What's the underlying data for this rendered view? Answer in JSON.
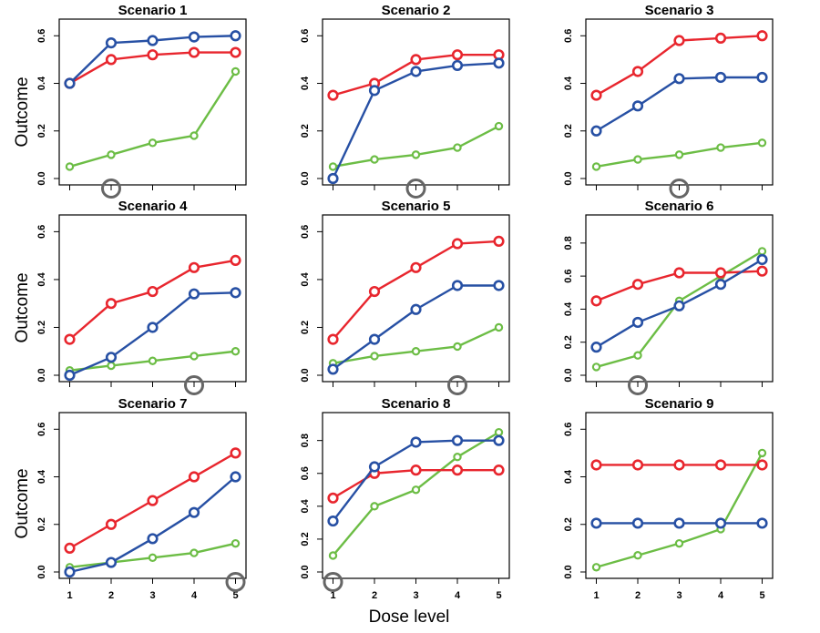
{
  "colors": {
    "red": "#e8262e",
    "blue": "#2750a4",
    "green": "#6cbd45",
    "mtd_marker": "#666666"
  },
  "chart_data": {
    "type": "line",
    "ylabel": "Outcome",
    "xlabel": "Dose level",
    "x": [
      1,
      2,
      3,
      4,
      5
    ],
    "grid": false,
    "panels": [
      {
        "title": "Scenario 1",
        "ylim": [
          0,
          0.67
        ],
        "yticks": [
          "0.0",
          "0.2",
          "0.4",
          "0.6"
        ],
        "mtd_circle_at": 2,
        "series": [
          {
            "color": "red",
            "values": [
              0.4,
              0.5,
              0.52,
              0.53,
              0.53
            ]
          },
          {
            "color": "blue",
            "values": [
              0.4,
              0.57,
              0.58,
              0.595,
              0.6
            ]
          },
          {
            "color": "green",
            "values": [
              0.05,
              0.1,
              0.15,
              0.18,
              0.45
            ]
          }
        ]
      },
      {
        "title": "Scenario 2",
        "ylim": [
          0,
          0.67
        ],
        "yticks": [
          "0.0",
          "0.2",
          "0.4",
          "0.6"
        ],
        "mtd_circle_at": 3,
        "series": [
          {
            "color": "red",
            "values": [
              0.35,
              0.4,
              0.5,
              0.52,
              0.52
            ]
          },
          {
            "color": "blue",
            "values": [
              0.0,
              0.37,
              0.45,
              0.475,
              0.485
            ]
          },
          {
            "color": "green",
            "values": [
              0.05,
              0.08,
              0.1,
              0.13,
              0.22
            ]
          }
        ]
      },
      {
        "title": "Scenario 3",
        "ylim": [
          0,
          0.67
        ],
        "yticks": [
          "0.0",
          "0.2",
          "0.4",
          "0.6"
        ],
        "mtd_circle_at": 3,
        "series": [
          {
            "color": "red",
            "values": [
              0.35,
              0.45,
              0.58,
              0.59,
              0.6
            ]
          },
          {
            "color": "blue",
            "values": [
              0.2,
              0.305,
              0.42,
              0.425,
              0.425
            ]
          },
          {
            "color": "green",
            "values": [
              0.05,
              0.08,
              0.1,
              0.13,
              0.15
            ]
          }
        ]
      },
      {
        "title": "Scenario 4",
        "ylim": [
          0,
          0.67
        ],
        "yticks": [
          "0.0",
          "0.2",
          "0.4",
          "0.6"
        ],
        "mtd_circle_at": 4,
        "series": [
          {
            "color": "red",
            "values": [
              0.15,
              0.3,
              0.35,
              0.45,
              0.48
            ]
          },
          {
            "color": "blue",
            "values": [
              0.0,
              0.075,
              0.2,
              0.34,
              0.345
            ]
          },
          {
            "color": "green",
            "values": [
              0.02,
              0.04,
              0.06,
              0.08,
              0.1
            ]
          }
        ]
      },
      {
        "title": "Scenario 5",
        "ylim": [
          0,
          0.67
        ],
        "yticks": [
          "0.0",
          "0.2",
          "0.4",
          "0.6"
        ],
        "mtd_circle_at": 4,
        "series": [
          {
            "color": "red",
            "values": [
              0.15,
              0.35,
              0.45,
              0.55,
              0.56
            ]
          },
          {
            "color": "blue",
            "values": [
              0.025,
              0.15,
              0.275,
              0.375,
              0.375
            ]
          },
          {
            "color": "green",
            "values": [
              0.05,
              0.08,
              0.1,
              0.12,
              0.2
            ]
          }
        ]
      },
      {
        "title": "Scenario 6",
        "ylim": [
          0,
          0.97
        ],
        "yticks": [
          "0.0",
          "0.2",
          "0.4",
          "0.6",
          "0.8"
        ],
        "mtd_circle_at": 2,
        "series": [
          {
            "color": "red",
            "values": [
              0.45,
              0.55,
              0.62,
              0.62,
              0.63
            ]
          },
          {
            "color": "blue",
            "values": [
              0.17,
              0.32,
              0.42,
              0.55,
              0.7
            ]
          },
          {
            "color": "green",
            "values": [
              0.05,
              0.12,
              0.45,
              0.6,
              0.75
            ]
          }
        ]
      },
      {
        "title": "Scenario 7",
        "ylim": [
          0,
          0.67
        ],
        "yticks": [
          "0.0",
          "0.2",
          "0.4",
          "0.6"
        ],
        "mtd_circle_at": 5,
        "series": [
          {
            "color": "red",
            "values": [
              0.1,
              0.2,
              0.3,
              0.4,
              0.5
            ]
          },
          {
            "color": "blue",
            "values": [
              0.0,
              0.04,
              0.14,
              0.25,
              0.4
            ]
          },
          {
            "color": "green",
            "values": [
              0.02,
              0.04,
              0.06,
              0.08,
              0.12
            ]
          }
        ]
      },
      {
        "title": "Scenario 8",
        "ylim": [
          0,
          0.97
        ],
        "yticks": [
          "0.0",
          "0.2",
          "0.4",
          "0.6",
          "0.8"
        ],
        "mtd_circle_at": 1,
        "series": [
          {
            "color": "red",
            "values": [
              0.45,
              0.6,
              0.62,
              0.62,
              0.62
            ]
          },
          {
            "color": "blue",
            "values": [
              0.31,
              0.64,
              0.79,
              0.8,
              0.8
            ]
          },
          {
            "color": "green",
            "values": [
              0.1,
              0.4,
              0.5,
              0.7,
              0.85
            ]
          }
        ]
      },
      {
        "title": "Scenario 9",
        "ylim": [
          0,
          0.67
        ],
        "yticks": [
          "0.0",
          "0.2",
          "0.4",
          "0.6"
        ],
        "mtd_circle_at": null,
        "series": [
          {
            "color": "red",
            "values": [
              0.45,
              0.45,
              0.45,
              0.45,
              0.45
            ]
          },
          {
            "color": "blue",
            "values": [
              0.205,
              0.205,
              0.205,
              0.205,
              0.205
            ]
          },
          {
            "color": "green",
            "values": [
              0.02,
              0.07,
              0.12,
              0.18,
              0.5
            ]
          }
        ]
      }
    ]
  }
}
